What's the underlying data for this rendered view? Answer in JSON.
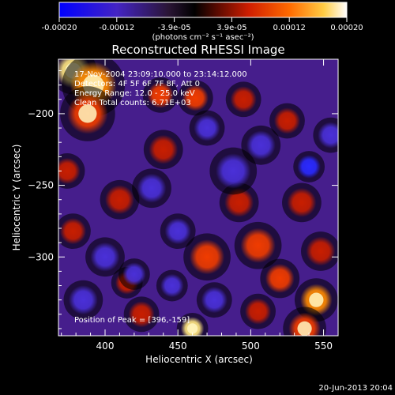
{
  "chart_data": {
    "type": "heatmap",
    "title": "Reconstructed RHESSI Image",
    "xlabel": "Heliocentric X (arcsec)",
    "ylabel": "Heliocentric Y (arcsec)",
    "xlim": [
      368,
      560
    ],
    "ylim": [
      -355,
      -162
    ],
    "x_ticks": [
      400,
      450,
      500,
      550
    ],
    "y_ticks": [
      -200,
      -250,
      -300
    ],
    "colorbar": {
      "ticks": [
        "-0.00020",
        "-0.00012",
        "-3.9e-05",
        "3.9e-05",
        "0.00012",
        "0.00020"
      ],
      "unit_label": "(photons cm⁻² s⁻¹ asec⁻²)",
      "range": [
        -0.0002,
        0.0002
      ]
    },
    "annotations": [
      "17-Nov-2004 23:09:10.000 to 23:14:12.000",
      "Detectors: 4F 5F 6F 7F 8F, Att 0",
      "Energy Range: 12.0 - 25.0 keV",
      "Clean    Total counts: 6.71E+03"
    ],
    "peak_label": "Position of Peak = [396,-159]",
    "blobs": [
      {
        "x": 378,
        "y": -170,
        "v": 0.0002,
        "s": 12
      },
      {
        "x": 392,
        "y": -180,
        "v": 0.00016,
        "s": 16
      },
      {
        "x": 388,
        "y": -200,
        "v": 0.00012,
        "s": 14
      },
      {
        "x": 462,
        "y": -189,
        "v": 0.00011,
        "s": 9
      },
      {
        "x": 438,
        "y": -187,
        "v": 8e-05,
        "s": 9
      },
      {
        "x": 440,
        "y": -225,
        "v": 6e-05,
        "s": 10
      },
      {
        "x": 374,
        "y": -240,
        "v": 7e-05,
        "s": 9
      },
      {
        "x": 410,
        "y": -260,
        "v": 5e-05,
        "s": 10
      },
      {
        "x": 378,
        "y": -282,
        "v": 4e-05,
        "s": 9
      },
      {
        "x": 492,
        "y": -262,
        "v": 7e-05,
        "s": 10
      },
      {
        "x": 470,
        "y": -300,
        "v": 9e-05,
        "s": 12
      },
      {
        "x": 505,
        "y": -292,
        "v": 9e-05,
        "s": 12
      },
      {
        "x": 535,
        "y": -262,
        "v": 7e-05,
        "s": 10
      },
      {
        "x": 548,
        "y": -296,
        "v": 5e-05,
        "s": 10
      },
      {
        "x": 520,
        "y": -315,
        "v": 8e-05,
        "s": 10
      },
      {
        "x": 545,
        "y": -330,
        "v": 0.00014,
        "s": 11
      },
      {
        "x": 537,
        "y": -350,
        "v": 0.00012,
        "s": 11
      },
      {
        "x": 505,
        "y": -338,
        "v": 6e-05,
        "s": 9
      },
      {
        "x": 460,
        "y": -350,
        "v": 0.00018,
        "s": 8
      },
      {
        "x": 425,
        "y": -340,
        "v": 3e-05,
        "s": 9
      },
      {
        "x": 415,
        "y": -318,
        "v": 4e-05,
        "s": 8
      },
      {
        "x": 495,
        "y": -190,
        "v": 5e-05,
        "s": 9
      },
      {
        "x": 525,
        "y": -205,
        "v": 4e-05,
        "s": 9
      },
      {
        "x": 400,
        "y": -300,
        "v": -5e-05,
        "s": 10
      },
      {
        "x": 385,
        "y": -330,
        "v": -4e-05,
        "s": 10
      },
      {
        "x": 432,
        "y": -252,
        "v": -6e-05,
        "s": 10
      },
      {
        "x": 488,
        "y": -240,
        "v": -4e-05,
        "s": 12
      },
      {
        "x": 507,
        "y": -222,
        "v": -4e-05,
        "s": 10
      },
      {
        "x": 540,
        "y": -237,
        "v": -7e-05,
        "s": 8
      },
      {
        "x": 450,
        "y": -282,
        "v": -5e-05,
        "s": 9
      },
      {
        "x": 475,
        "y": -330,
        "v": -4e-05,
        "s": 9
      },
      {
        "x": 420,
        "y": -312,
        "v": -3e-05,
        "s": 8
      },
      {
        "x": 446,
        "y": -320,
        "v": -4e-05,
        "s": 8
      },
      {
        "x": 470,
        "y": -210,
        "v": -3e-05,
        "s": 9
      },
      {
        "x": 555,
        "y": -215,
        "v": -3e-05,
        "s": 9
      }
    ]
  },
  "footer": {
    "date": "20-Jun-2013 20:04"
  },
  "colors": {
    "background": "#000000",
    "colormap": [
      "#0000ff",
      "#6a3ad2",
      "#301a50",
      "#000000",
      "#c81e00",
      "#ff4400",
      "#ff9900",
      "#ffee66",
      "#ffffff"
    ]
  }
}
